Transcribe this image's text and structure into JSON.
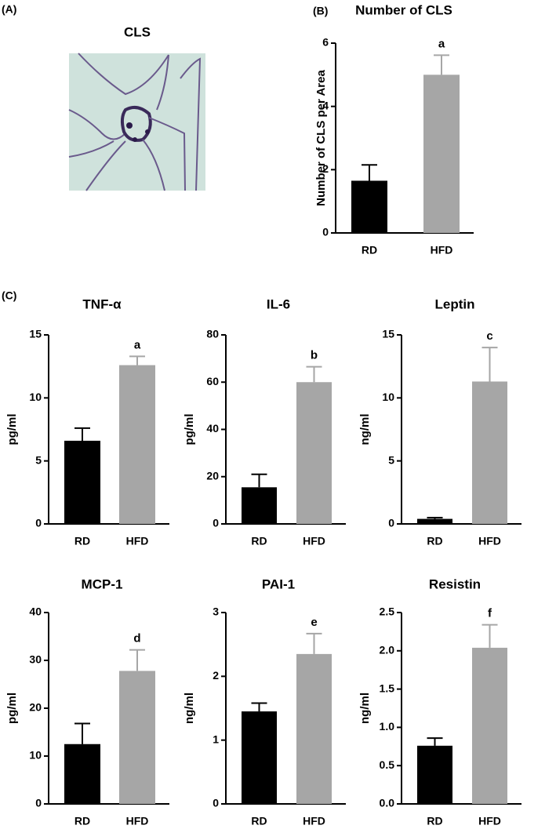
{
  "panel_labels": [
    "(A)",
    "(B)",
    "(C)"
  ],
  "image": {
    "title": "CLS"
  },
  "chart_data": [
    {
      "type": "bar",
      "title": "Number of CLS",
      "ylabel": "Number of CLS per Area",
      "categories": [
        "RD",
        "HFD"
      ],
      "values": [
        1.65,
        5.0
      ],
      "errors": [
        0.5,
        0.62
      ],
      "colors": [
        "#000000",
        "#a6a6a6"
      ],
      "ylim": [
        0,
        6
      ],
      "yticks": [
        0,
        2,
        4,
        6
      ],
      "annotations": [
        null,
        "a"
      ]
    },
    {
      "type": "bar",
      "title": "TNF-α",
      "ylabel": "pg/ml",
      "categories": [
        "RD",
        "HFD"
      ],
      "values": [
        6.6,
        12.6
      ],
      "errors": [
        1.0,
        0.7
      ],
      "colors": [
        "#000000",
        "#a6a6a6"
      ],
      "ylim": [
        0,
        15
      ],
      "yticks": [
        0,
        5,
        10,
        15
      ],
      "annotations": [
        null,
        "a"
      ]
    },
    {
      "type": "bar",
      "title": "IL-6",
      "ylabel": "pg/ml",
      "categories": [
        "RD",
        "HFD"
      ],
      "values": [
        15.5,
        60
      ],
      "errors": [
        5.5,
        6.5
      ],
      "colors": [
        "#000000",
        "#a6a6a6"
      ],
      "ylim": [
        0,
        80
      ],
      "yticks": [
        0,
        20,
        40,
        60,
        80
      ],
      "annotations": [
        null,
        "b"
      ]
    },
    {
      "type": "bar",
      "title": "Leptin",
      "ylabel": "ng/ml",
      "categories": [
        "RD",
        "HFD"
      ],
      "values": [
        0.4,
        11.3
      ],
      "errors": [
        0.1,
        2.7
      ],
      "colors": [
        "#000000",
        "#a6a6a6"
      ],
      "ylim": [
        0,
        15
      ],
      "yticks": [
        0,
        5,
        10,
        15
      ],
      "annotations": [
        null,
        "c"
      ]
    },
    {
      "type": "bar",
      "title": "MCP-1",
      "ylabel": "pg/ml",
      "categories": [
        "RD",
        "HFD"
      ],
      "values": [
        12.5,
        27.8
      ],
      "errors": [
        4.3,
        4.4
      ],
      "colors": [
        "#000000",
        "#a6a6a6"
      ],
      "ylim": [
        0,
        40
      ],
      "yticks": [
        0,
        10,
        20,
        30,
        40
      ],
      "annotations": [
        null,
        "d"
      ]
    },
    {
      "type": "bar",
      "title": "PAI-1",
      "ylabel": "ng/ml",
      "categories": [
        "RD",
        "HFD"
      ],
      "values": [
        1.45,
        2.35
      ],
      "errors": [
        0.13,
        0.32
      ],
      "colors": [
        "#000000",
        "#a6a6a6"
      ],
      "ylim": [
        0,
        3
      ],
      "yticks": [
        0,
        1,
        2,
        3
      ],
      "annotations": [
        null,
        "e"
      ]
    },
    {
      "type": "bar",
      "title": "Resistin",
      "ylabel": "ng/ml",
      "categories": [
        "RD",
        "HFD"
      ],
      "values": [
        0.76,
        2.04
      ],
      "errors": [
        0.1,
        0.3
      ],
      "colors": [
        "#000000",
        "#a6a6a6"
      ],
      "ylim": [
        0,
        2.5
      ],
      "yticks": [
        {
          "value": 0,
          "label": "0.0"
        },
        {
          "value": 0.5,
          "label": "0.5"
        },
        {
          "value": 1,
          "label": "1.0"
        },
        {
          "value": 1.5,
          "label": "1.5"
        },
        {
          "value": 2,
          "label": "2.0"
        },
        {
          "value": 2.5,
          "label": "2.5"
        }
      ],
      "annotations": [
        null,
        "f"
      ]
    }
  ]
}
